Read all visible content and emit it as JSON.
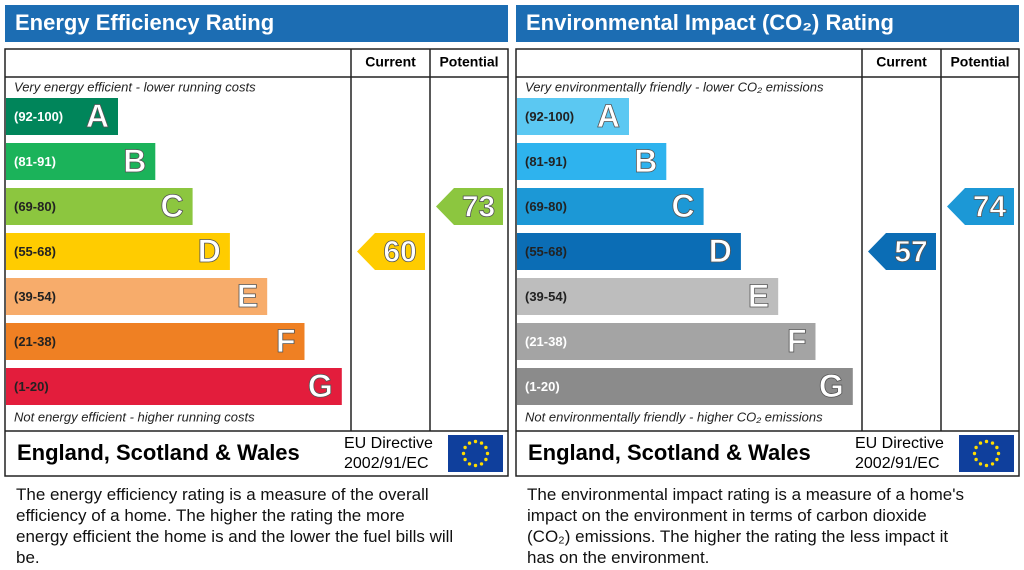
{
  "chart_data": [
    {
      "type": "epc",
      "title": "Energy Efficiency Rating",
      "columns": [
        "Current",
        "Potential"
      ],
      "top_note": "Very energy efficient - lower running costs",
      "bottom_note": "Not energy efficient - higher running costs",
      "bands": [
        {
          "range": "(92-100)",
          "letter": "A",
          "color": "#00855a",
          "label_color": "#ffffff"
        },
        {
          "range": "(81-91)",
          "letter": "B",
          "color": "#1bb35a",
          "label_color": "#ffffff"
        },
        {
          "range": "(69-80)",
          "letter": "C",
          "color": "#8cc63f",
          "label_color": "#222222"
        },
        {
          "range": "(55-68)",
          "letter": "D",
          "color": "#ffcc00",
          "label_color": "#222222"
        },
        {
          "range": "(39-54)",
          "letter": "E",
          "color": "#f7ac6b",
          "label_color": "#222222"
        },
        {
          "range": "(21-38)",
          "letter": "F",
          "color": "#ef8023",
          "label_color": "#222222"
        },
        {
          "range": "(1-20)",
          "letter": "G",
          "color": "#e31d3c",
          "label_color": "#222222"
        }
      ],
      "current": 60,
      "potential": 73,
      "region": "England, Scotland & Wales",
      "directive": "EU Directive",
      "directive_code": "2002/91/EC",
      "description": "The energy efficiency rating is a measure of the overall efficiency of a home. The higher the rating the more energy efficient the home is and the lower the fuel bills will be."
    },
    {
      "type": "epc",
      "title": "Environmental Impact (CO₂) Rating",
      "columns": [
        "Current",
        "Potential"
      ],
      "top_note": "Very environmentally friendly - lower CO₂ emissions",
      "bottom_note": "Not environmentally friendly - higher CO₂ emissions",
      "bands": [
        {
          "range": "(92-100)",
          "letter": "A",
          "color": "#5bc8f2",
          "label_color": "#222222"
        },
        {
          "range": "(81-91)",
          "letter": "B",
          "color": "#2eb3ee",
          "label_color": "#222222"
        },
        {
          "range": "(69-80)",
          "letter": "C",
          "color": "#1c98d6",
          "label_color": "#222222"
        },
        {
          "range": "(55-68)",
          "letter": "D",
          "color": "#0b6db5",
          "label_color": "#222222"
        },
        {
          "range": "(39-54)",
          "letter": "E",
          "color": "#bdbdbd",
          "label_color": "#222222"
        },
        {
          "range": "(21-38)",
          "letter": "F",
          "color": "#a4a4a4",
          "label_color": "#ffffff"
        },
        {
          "range": "(1-20)",
          "letter": "G",
          "color": "#8b8b8b",
          "label_color": "#ffffff"
        }
      ],
      "current": 57,
      "potential": 74,
      "region": "England, Scotland & Wales",
      "directive": "EU Directive",
      "directive_code": "2002/91/EC",
      "description": "The environmental impact rating is a measure of a home's impact on the environment in terms of carbon dioxide (CO₂) emissions. The higher the rating the less impact it has on the environment."
    }
  ]
}
